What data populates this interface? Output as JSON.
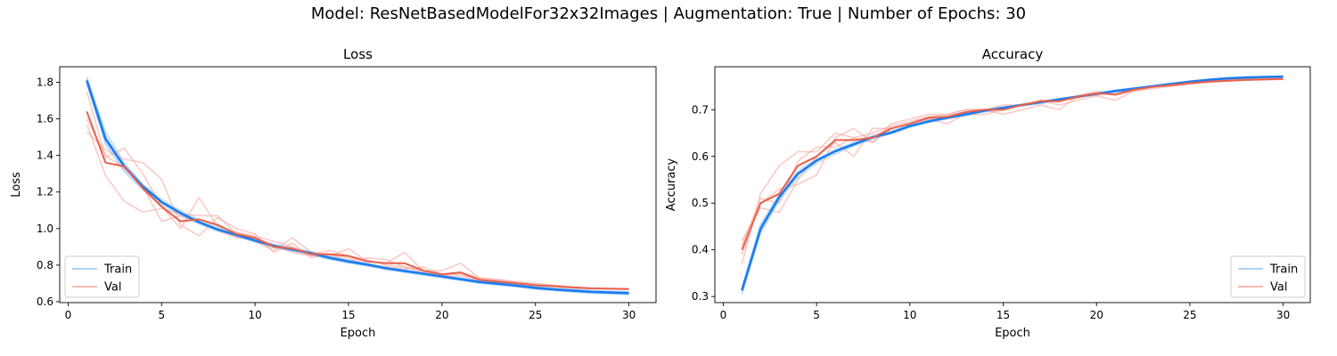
{
  "suptitle": "Model: ResNetBasedModelFor32x32Images | Augmentation: True | Number of Epochs: 30",
  "colors": {
    "train_faint": "#8fc3f0",
    "train_main": "#1a7cf0",
    "val_faint": "#f6a49a",
    "val_main": "#e8604c"
  },
  "chart_data": [
    {
      "type": "line",
      "title": "Loss",
      "xlabel": "Epoch",
      "ylabel": "Loss",
      "xlim": [
        -0.45,
        31.45
      ],
      "ylim": [
        0.595,
        1.885
      ],
      "xticks": [
        0,
        5,
        10,
        15,
        20,
        25,
        30
      ],
      "yticks": [
        0.6,
        0.8,
        1.0,
        1.2,
        1.4,
        1.6,
        1.8
      ],
      "ytick_labels": [
        "0.6",
        "0.8",
        "1.0",
        "1.2",
        "1.4",
        "1.6",
        "1.8"
      ],
      "legend": {
        "position": "lower-left",
        "entries": [
          "Train",
          "Val"
        ]
      },
      "x": [
        1,
        2,
        3,
        4,
        5,
        6,
        7,
        8,
        9,
        10,
        11,
        12,
        13,
        14,
        15,
        16,
        17,
        18,
        19,
        20,
        21,
        22,
        23,
        24,
        25,
        26,
        27,
        28,
        29,
        30
      ],
      "train_runs": [
        [
          1.83,
          1.53,
          1.36,
          1.24,
          1.15,
          1.09,
          1.04,
          1.0,
          0.97,
          0.94,
          0.91,
          0.89,
          0.87,
          0.845,
          0.825,
          0.805,
          0.785,
          0.77,
          0.755,
          0.74,
          0.725,
          0.71,
          0.7,
          0.69,
          0.68,
          0.67,
          0.665,
          0.658,
          0.655,
          0.652
        ],
        [
          1.8,
          1.47,
          1.32,
          1.22,
          1.14,
          1.08,
          1.03,
          0.99,
          0.96,
          0.93,
          0.9,
          0.88,
          0.86,
          0.835,
          0.815,
          0.8,
          0.78,
          0.765,
          0.75,
          0.735,
          0.72,
          0.705,
          0.695,
          0.685,
          0.672,
          0.663,
          0.656,
          0.65,
          0.646,
          0.643
        ],
        [
          1.82,
          1.51,
          1.35,
          1.24,
          1.16,
          1.1,
          1.05,
          1.01,
          0.975,
          0.945,
          0.915,
          0.895,
          0.875,
          0.85,
          0.83,
          0.81,
          0.79,
          0.775,
          0.76,
          0.745,
          0.73,
          0.715,
          0.705,
          0.695,
          0.684,
          0.675,
          0.668,
          0.662,
          0.658,
          0.655
        ],
        [
          1.79,
          1.46,
          1.31,
          1.21,
          1.13,
          1.07,
          1.025,
          0.985,
          0.955,
          0.925,
          0.895,
          0.875,
          0.855,
          0.83,
          0.81,
          0.795,
          0.775,
          0.76,
          0.745,
          0.73,
          0.715,
          0.7,
          0.69,
          0.68,
          0.668,
          0.66,
          0.652,
          0.646,
          0.642,
          0.638
        ]
      ],
      "train_mean": [
        1.81,
        1.49,
        1.34,
        1.23,
        1.145,
        1.085,
        1.035,
        0.995,
        0.965,
        0.935,
        0.905,
        0.885,
        0.865,
        0.84,
        0.82,
        0.803,
        0.783,
        0.768,
        0.753,
        0.738,
        0.723,
        0.708,
        0.698,
        0.688,
        0.676,
        0.667,
        0.66,
        0.654,
        0.65,
        0.647
      ],
      "val_runs": [
        [
          1.75,
          1.39,
          1.44,
          1.3,
          1.12,
          1.0,
          1.17,
          1.01,
          0.98,
          0.96,
          0.93,
          0.9,
          0.86,
          0.88,
          0.85,
          0.83,
          0.8,
          0.79,
          0.77,
          0.77,
          0.81,
          0.73,
          0.72,
          0.71,
          0.7,
          0.69,
          0.68,
          0.675,
          0.672,
          0.67
        ],
        [
          1.57,
          1.29,
          1.15,
          1.09,
          1.11,
          1.08,
          1.07,
          1.07,
          0.97,
          0.93,
          0.88,
          0.95,
          0.87,
          0.85,
          0.89,
          0.82,
          0.81,
          0.87,
          0.77,
          0.74,
          0.74,
          0.72,
          0.71,
          0.7,
          0.69,
          0.683,
          0.677,
          0.673,
          0.671,
          0.669
        ],
        [
          1.53,
          1.43,
          1.38,
          1.36,
          1.27,
          1.02,
          0.96,
          1.06,
          1.0,
          0.97,
          0.87,
          0.92,
          0.84,
          0.86,
          0.82,
          0.84,
          0.83,
          0.79,
          0.76,
          0.74,
          0.76,
          0.73,
          0.72,
          0.705,
          0.695,
          0.685,
          0.675,
          0.672,
          0.669,
          0.667
        ],
        [
          1.6,
          1.4,
          1.33,
          1.23,
          1.04,
          1.07,
          1.04,
          0.99,
          0.95,
          0.95,
          0.91,
          0.87,
          0.85,
          0.86,
          0.84,
          0.8,
          0.79,
          0.78,
          0.79,
          0.75,
          0.75,
          0.715,
          0.705,
          0.7,
          0.69,
          0.682,
          0.676,
          0.672,
          0.67,
          0.668
        ]
      ],
      "val_mean": [
        1.64,
        1.36,
        1.34,
        1.22,
        1.12,
        1.04,
        1.05,
        1.02,
        0.97,
        0.95,
        0.9,
        0.89,
        0.86,
        0.86,
        0.85,
        0.82,
        0.81,
        0.81,
        0.77,
        0.75,
        0.76,
        0.72,
        0.71,
        0.7,
        0.69,
        0.685,
        0.678,
        0.673,
        0.671,
        0.669
      ]
    },
    {
      "type": "line",
      "title": "Accuracy",
      "xlabel": "Epoch",
      "ylabel": "Accuracy",
      "xlim": [
        -0.45,
        31.45
      ],
      "ylim": [
        0.287,
        0.792
      ],
      "xticks": [
        0,
        5,
        10,
        15,
        20,
        25,
        30
      ],
      "yticks": [
        0.3,
        0.4,
        0.5,
        0.6,
        0.7
      ],
      "ytick_labels": [
        "0.3",
        "0.4",
        "0.5",
        "0.6",
        "0.7"
      ],
      "legend": {
        "position": "lower-right",
        "entries": [
          "Train",
          "Val"
        ]
      },
      "x": [
        1,
        2,
        3,
        4,
        5,
        6,
        7,
        8,
        9,
        10,
        11,
        12,
        13,
        14,
        15,
        16,
        17,
        18,
        19,
        20,
        21,
        22,
        23,
        24,
        25,
        26,
        27,
        28,
        29,
        30
      ],
      "train_runs": [
        [
          0.31,
          0.44,
          0.51,
          0.56,
          0.59,
          0.61,
          0.625,
          0.64,
          0.65,
          0.665,
          0.675,
          0.683,
          0.69,
          0.697,
          0.703,
          0.71,
          0.715,
          0.722,
          0.728,
          0.734,
          0.74,
          0.745,
          0.75,
          0.755,
          0.76,
          0.763,
          0.766,
          0.768,
          0.769,
          0.77
        ],
        [
          0.32,
          0.455,
          0.52,
          0.57,
          0.595,
          0.615,
          0.63,
          0.645,
          0.655,
          0.668,
          0.678,
          0.686,
          0.693,
          0.7,
          0.706,
          0.712,
          0.718,
          0.724,
          0.73,
          0.736,
          0.742,
          0.747,
          0.752,
          0.757,
          0.761,
          0.765,
          0.768,
          0.77,
          0.771,
          0.772
        ],
        [
          0.305,
          0.435,
          0.505,
          0.555,
          0.585,
          0.605,
          0.622,
          0.637,
          0.648,
          0.662,
          0.672,
          0.68,
          0.687,
          0.695,
          0.701,
          0.708,
          0.713,
          0.72,
          0.726,
          0.732,
          0.738,
          0.743,
          0.748,
          0.753,
          0.758,
          0.762,
          0.765,
          0.767,
          0.768,
          0.769
        ],
        [
          0.315,
          0.45,
          0.515,
          0.565,
          0.592,
          0.612,
          0.628,
          0.642,
          0.652,
          0.666,
          0.676,
          0.684,
          0.691,
          0.698,
          0.704,
          0.711,
          0.716,
          0.723,
          0.729,
          0.735,
          0.741,
          0.746,
          0.751,
          0.756,
          0.76,
          0.764,
          0.767,
          0.769,
          0.77,
          0.771
        ]
      ],
      "train_mean": [
        0.313,
        0.445,
        0.513,
        0.563,
        0.591,
        0.611,
        0.626,
        0.641,
        0.651,
        0.665,
        0.675,
        0.683,
        0.69,
        0.698,
        0.704,
        0.71,
        0.716,
        0.722,
        0.728,
        0.734,
        0.74,
        0.745,
        0.75,
        0.755,
        0.76,
        0.764,
        0.767,
        0.769,
        0.77,
        0.771
      ],
      "val_runs": [
        [
          0.37,
          0.52,
          0.58,
          0.61,
          0.61,
          0.65,
          0.64,
          0.63,
          0.67,
          0.68,
          0.69,
          0.69,
          0.7,
          0.7,
          0.7,
          0.71,
          0.72,
          0.72,
          0.73,
          0.74,
          0.73,
          0.74,
          0.75,
          0.755,
          0.76,
          0.762,
          0.764,
          0.766,
          0.767,
          0.768
        ],
        [
          0.42,
          0.49,
          0.48,
          0.55,
          0.6,
          0.63,
          0.6,
          0.66,
          0.66,
          0.67,
          0.68,
          0.68,
          0.69,
          0.7,
          0.69,
          0.7,
          0.71,
          0.7,
          0.73,
          0.73,
          0.72,
          0.74,
          0.75,
          0.75,
          0.755,
          0.76,
          0.762,
          0.764,
          0.765,
          0.766
        ],
        [
          0.39,
          0.5,
          0.53,
          0.54,
          0.56,
          0.64,
          0.66,
          0.63,
          0.66,
          0.67,
          0.68,
          0.67,
          0.69,
          0.69,
          0.7,
          0.71,
          0.72,
          0.71,
          0.72,
          0.73,
          0.74,
          0.74,
          0.745,
          0.75,
          0.755,
          0.758,
          0.761,
          0.763,
          0.764,
          0.765
        ],
        [
          0.41,
          0.51,
          0.5,
          0.59,
          0.62,
          0.62,
          0.64,
          0.65,
          0.665,
          0.675,
          0.685,
          0.69,
          0.7,
          0.7,
          0.71,
          0.71,
          0.72,
          0.72,
          0.725,
          0.735,
          0.74,
          0.745,
          0.75,
          0.752,
          0.757,
          0.76,
          0.763,
          0.765,
          0.766,
          0.767
        ]
      ],
      "val_mean": [
        0.4,
        0.5,
        0.52,
        0.58,
        0.6,
        0.635,
        0.635,
        0.64,
        0.66,
        0.67,
        0.683,
        0.685,
        0.695,
        0.7,
        0.7,
        0.71,
        0.718,
        0.718,
        0.728,
        0.735,
        0.733,
        0.743,
        0.749,
        0.753,
        0.757,
        0.76,
        0.762,
        0.764,
        0.765,
        0.766
      ]
    }
  ]
}
